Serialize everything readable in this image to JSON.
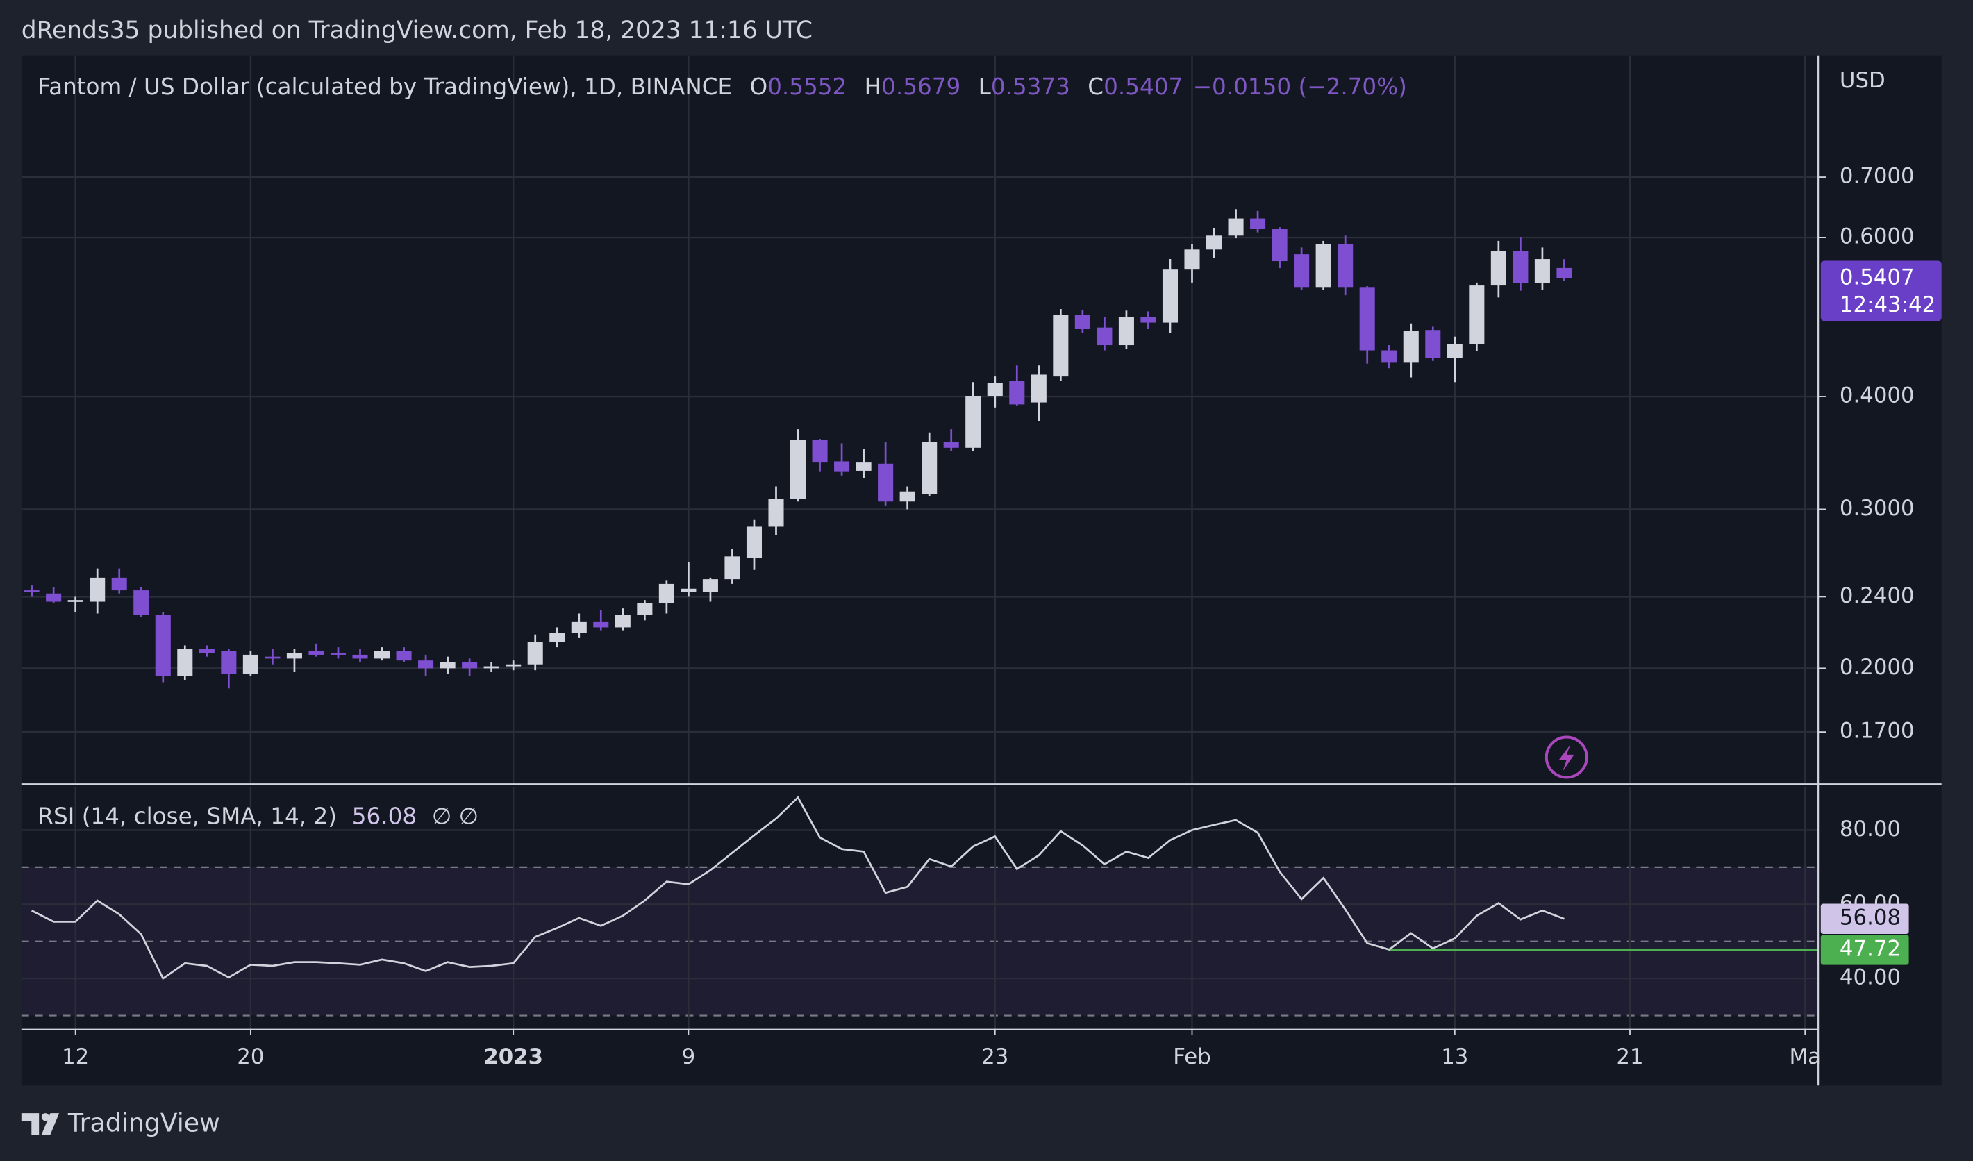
{
  "header": {
    "publisher_line": "dRends35 published on TradingView.com, Feb 18, 2023 11:16 UTC"
  },
  "footer": {
    "brand": "TradingView"
  },
  "chart_data": [
    {
      "type": "candlestick",
      "title": "Fantom / US Dollar (calculated by TradingView), 1D, BINANCE",
      "ohlc_labels": [
        "O",
        "H",
        "L",
        "C"
      ],
      "change_label": "−0.0150 (−2.70%)",
      "y_unit": "USD",
      "countdown": "12:43:42",
      "up_color": "#d1d4dc",
      "down_color": "#7e4fd0",
      "last_color": "#6a3fc8",
      "log_scale": true,
      "grid": true,
      "x": [
        0,
        1,
        2,
        3,
        4,
        5,
        6,
        7,
        8,
        9,
        10,
        11,
        12,
        13,
        14,
        15,
        16,
        17,
        18,
        19,
        20,
        21,
        22,
        23,
        24,
        25,
        26,
        27,
        28,
        29,
        30,
        31,
        32,
        33,
        34,
        35,
        36,
        37,
        38,
        39,
        40,
        41,
        42,
        43,
        44,
        45,
        46,
        47,
        48,
        49,
        50,
        51,
        52,
        53,
        54,
        55,
        56,
        57,
        58,
        59,
        60,
        61,
        62,
        63,
        64,
        65,
        66,
        67,
        68,
        69,
        70
      ],
      "open": [
        0.244,
        0.242,
        0.237,
        0.237,
        0.252,
        0.244,
        0.229,
        0.196,
        0.21,
        0.209,
        0.197,
        0.206,
        0.205,
        0.209,
        0.208,
        0.207,
        0.205,
        0.209,
        0.204,
        0.2,
        0.203,
        0.2,
        0.201,
        0.202,
        0.214,
        0.219,
        0.225,
        0.222,
        0.229,
        0.236,
        0.243,
        0.243,
        0.251,
        0.265,
        0.287,
        0.308,
        0.358,
        0.339,
        0.331,
        0.337,
        0.306,
        0.312,
        0.356,
        0.351,
        0.4,
        0.416,
        0.394,
        0.421,
        0.493,
        0.477,
        0.456,
        0.49,
        0.483,
        0.553,
        0.582,
        0.603,
        0.63,
        0.613,
        0.575,
        0.528,
        0.59,
        0.528,
        0.45,
        0.436,
        0.474,
        0.441,
        0.457,
        0.531,
        0.58,
        0.534,
        0.5552
      ],
      "high": [
        0.247,
        0.246,
        0.24,
        0.258,
        0.258,
        0.246,
        0.231,
        0.212,
        0.212,
        0.21,
        0.209,
        0.21,
        0.21,
        0.213,
        0.211,
        0.21,
        0.211,
        0.211,
        0.207,
        0.206,
        0.205,
        0.203,
        0.204,
        0.218,
        0.222,
        0.23,
        0.232,
        0.233,
        0.238,
        0.25,
        0.262,
        0.252,
        0.271,
        0.292,
        0.318,
        0.368,
        0.359,
        0.355,
        0.35,
        0.356,
        0.318,
        0.365,
        0.368,
        0.415,
        0.421,
        0.433,
        0.433,
        0.5,
        0.499,
        0.49,
        0.498,
        0.497,
        0.568,
        0.59,
        0.615,
        0.645,
        0.642,
        0.616,
        0.585,
        0.595,
        0.603,
        0.53,
        0.456,
        0.482,
        0.478,
        0.466,
        0.535,
        0.595,
        0.6,
        0.585,
        0.5679
      ],
      "low": [
        0.24,
        0.236,
        0.231,
        0.23,
        0.242,
        0.228,
        0.193,
        0.194,
        0.206,
        0.19,
        0.196,
        0.202,
        0.198,
        0.206,
        0.205,
        0.203,
        0.204,
        0.203,
        0.196,
        0.197,
        0.196,
        0.198,
        0.199,
        0.199,
        0.211,
        0.216,
        0.22,
        0.22,
        0.226,
        0.23,
        0.24,
        0.237,
        0.248,
        0.257,
        0.281,
        0.306,
        0.33,
        0.327,
        0.325,
        0.303,
        0.3,
        0.31,
        0.348,
        0.348,
        0.389,
        0.391,
        0.376,
        0.416,
        0.47,
        0.45,
        0.452,
        0.475,
        0.47,
        0.535,
        0.57,
        0.599,
        0.608,
        0.555,
        0.525,
        0.525,
        0.518,
        0.435,
        0.43,
        0.42,
        0.438,
        0.415,
        0.449,
        0.515,
        0.524,
        0.525,
        0.5373
      ],
      "close": [
        0.243,
        0.237,
        0.238,
        0.252,
        0.244,
        0.229,
        0.196,
        0.21,
        0.208,
        0.197,
        0.207,
        0.205,
        0.208,
        0.207,
        0.207,
        0.205,
        0.209,
        0.204,
        0.2,
        0.203,
        0.2,
        0.201,
        0.202,
        0.214,
        0.219,
        0.225,
        0.222,
        0.229,
        0.236,
        0.248,
        0.245,
        0.251,
        0.266,
        0.287,
        0.308,
        0.358,
        0.338,
        0.33,
        0.338,
        0.306,
        0.314,
        0.356,
        0.351,
        0.4,
        0.414,
        0.392,
        0.423,
        0.493,
        0.475,
        0.456,
        0.49,
        0.483,
        0.553,
        0.582,
        0.603,
        0.63,
        0.613,
        0.565,
        0.528,
        0.59,
        0.528,
        0.45,
        0.436,
        0.473,
        0.441,
        0.457,
        0.531,
        0.58,
        0.534,
        0.568,
        0.5407
      ],
      "xlim": [
        -0.47,
        81.6
      ],
      "xticks": [
        {
          "value": 2,
          "label": "12"
        },
        {
          "value": 10,
          "label": "20"
        },
        {
          "value": 22,
          "label": "2023"
        },
        {
          "value": 30,
          "label": "9"
        },
        {
          "value": 44,
          "label": "23"
        },
        {
          "value": 53,
          "label": "Feb"
        },
        {
          "value": 65,
          "label": "13"
        },
        {
          "value": 73,
          "label": "21"
        },
        {
          "value": 81,
          "label": "Ma"
        }
      ],
      "ylim": [
        0.149,
        0.955
      ],
      "yticks": [
        {
          "value": 0.7,
          "label": "0.7000"
        },
        {
          "value": 0.6,
          "label": "0.6000"
        },
        {
          "value": 0.4,
          "label": "0.4000"
        },
        {
          "value": 0.3,
          "label": "0.3000"
        },
        {
          "value": 0.24,
          "label": "0.2400"
        },
        {
          "value": 0.2,
          "label": "0.2000"
        },
        {
          "value": 0.17,
          "label": "0.1700"
        }
      ]
    },
    {
      "type": "line",
      "legend_suffix": "∅  ∅",
      "grid": true,
      "x": [
        0,
        1,
        2,
        3,
        4,
        5,
        6,
        7,
        8,
        9,
        10,
        11,
        12,
        13,
        14,
        15,
        16,
        17,
        18,
        19,
        20,
        21,
        22,
        23,
        24,
        25,
        26,
        27,
        28,
        29,
        30,
        31,
        32,
        33,
        34,
        35,
        36,
        37,
        38,
        39,
        40,
        41,
        42,
        43,
        44,
        45,
        46,
        47,
        48,
        49,
        50,
        51,
        52,
        53,
        54,
        55,
        56,
        57,
        58,
        59,
        60,
        61,
        62,
        63,
        64,
        65,
        66,
        67,
        68,
        69,
        70
      ],
      "series": [
        {
          "name": "RSI (14, close, SMA, 14, 2)",
          "color": "#d1d4dc",
          "label_color": "#d1c4e9",
          "values": [
            58.3,
            55.3,
            55.3,
            61.0,
            57.3,
            51.9,
            40.0,
            44.1,
            43.4,
            40.3,
            43.7,
            43.4,
            44.4,
            44.4,
            44.1,
            43.7,
            45.1,
            44.1,
            42.0,
            44.4,
            43.1,
            43.4,
            44.1,
            51.2,
            53.6,
            56.3,
            54.2,
            56.9,
            61.0,
            66.1,
            65.4,
            69.2,
            73.9,
            78.6,
            83.1,
            88.8,
            78.0,
            74.9,
            74.2,
            63.1,
            64.7,
            72.2,
            70.2,
            75.6,
            78.3,
            69.5,
            73.2,
            79.7,
            75.9,
            70.8,
            74.2,
            72.5,
            77.3,
            80.0,
            81.4,
            82.7,
            79.3,
            68.8,
            61.4,
            67.1,
            58.6,
            49.5,
            47.8,
            52.2,
            48.1,
            50.8,
            56.9,
            60.3,
            55.9,
            58.3,
            56.08
          ]
        }
      ],
      "marker_line": {
        "value": 47.72,
        "from_x": 62,
        "color": "#4caf50"
      },
      "levels": [
        70,
        50,
        30
      ],
      "band_color": "#7e57c2",
      "xlim": [
        -0.47,
        81.6
      ],
      "xticks": [
        {
          "value": 2,
          "label": "12"
        },
        {
          "value": 10,
          "label": "20"
        },
        {
          "value": 22,
          "label": "2023"
        },
        {
          "value": 30,
          "label": "9"
        },
        {
          "value": 44,
          "label": "23"
        },
        {
          "value": 53,
          "label": "Feb"
        },
        {
          "value": 65,
          "label": "13"
        },
        {
          "value": 73,
          "label": "21"
        },
        {
          "value": 81,
          "label": "Ma"
        }
      ],
      "ylim": [
        26.4,
        91.5
      ],
      "yticks": [
        {
          "value": 80,
          "label": "80.00"
        },
        {
          "value": 60,
          "label": "60.00"
        },
        {
          "value": 40,
          "label": "40.00"
        }
      ]
    }
  ]
}
